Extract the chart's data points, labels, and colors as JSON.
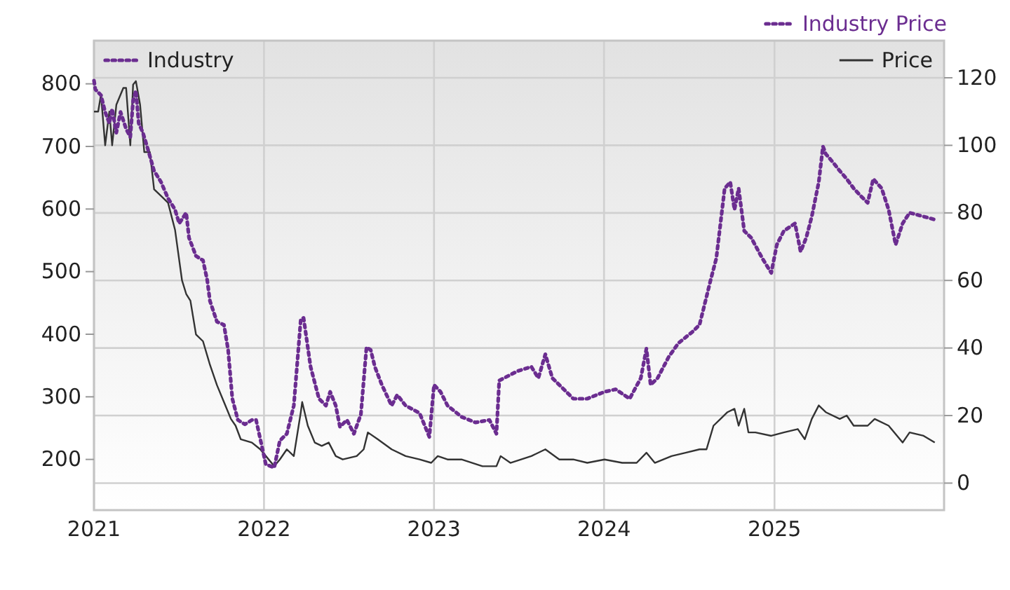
{
  "chart_data": {
    "type": "line",
    "legend_title": "Industry Price",
    "legend": "top",
    "grid": true,
    "xlim": [
      "2021-01-01",
      "2025-12-31"
    ],
    "xticks": [
      {
        "value": "2021-01-01",
        "label": "2021"
      },
      {
        "value": "2022-01-01",
        "label": "2022"
      },
      {
        "value": "2023-01-01",
        "label": "2023"
      },
      {
        "value": "2024-01-01",
        "label": "2024"
      },
      {
        "value": "2025-01-01",
        "label": "2025"
      }
    ],
    "ylim": [
      119,
      869
    ],
    "yticks": [
      200,
      300,
      400,
      500,
      600,
      700,
      800
    ],
    "y2lim": [
      -8,
      131
    ],
    "y2ticks": [
      0,
      20,
      40,
      60,
      80,
      100,
      120
    ],
    "series": [
      {
        "name": "Industry",
        "color": "#6b2d90",
        "line_style": "dotted",
        "x": [
          "2021-01-01",
          "2021-01-04",
          "2021-01-16",
          "2021-01-25",
          "2021-02-03",
          "2021-02-09",
          "2021-02-18",
          "2021-02-27",
          "2021-03-11",
          "2021-03-20",
          "2021-03-26",
          "2021-04-01",
          "2021-04-07",
          "2021-04-16",
          "2021-04-25",
          "2021-05-10",
          "2021-05-25",
          "2021-06-09",
          "2021-06-24",
          "2021-07-03",
          "2021-07-18",
          "2021-07-24",
          "2021-08-08",
          "2021-08-23",
          "2021-09-01",
          "2021-09-07",
          "2021-09-22",
          "2021-10-07",
          "2021-10-16",
          "2021-10-25",
          "2021-11-06",
          "2021-11-21",
          "2021-12-06",
          "2021-12-15",
          "2022-01-05",
          "2022-01-23",
          "2022-02-04",
          "2022-02-19",
          "2022-03-06",
          "2022-03-21",
          "2022-03-27",
          "2022-04-11",
          "2022-04-29",
          "2022-05-14",
          "2022-05-23",
          "2022-06-04",
          "2022-06-13",
          "2022-06-28",
          "2022-07-13",
          "2022-07-28",
          "2022-08-09",
          "2022-08-18",
          "2022-08-27",
          "2022-09-11",
          "2022-10-02",
          "2022-10-14",
          "2022-11-01",
          "2022-12-01",
          "2022-12-22",
          "2023-01-01",
          "2023-01-15",
          "2023-01-30",
          "2023-03-01",
          "2023-03-31",
          "2023-04-30",
          "2023-05-15",
          "2023-05-21",
          "2023-06-29",
          "2023-07-29",
          "2023-08-13",
          "2023-08-28",
          "2023-09-12",
          "2023-09-27",
          "2023-10-27",
          "2023-11-26",
          "2024-01-02",
          "2024-01-26",
          "2024-02-25",
          "2024-03-20",
          "2024-04-01",
          "2024-04-10",
          "2024-04-25",
          "2024-05-19",
          "2024-06-09",
          "2024-07-09",
          "2024-07-24",
          "2024-08-17",
          "2024-08-29",
          "2024-09-16",
          "2024-09-28",
          "2024-10-07",
          "2024-10-16",
          "2024-10-28",
          "2024-11-12",
          "2024-12-06",
          "2024-12-25",
          "2025-01-06",
          "2025-01-21",
          "2025-02-14",
          "2025-02-26",
          "2025-03-10",
          "2025-03-22",
          "2025-04-06",
          "2025-04-15",
          "2025-04-21",
          "2025-05-06",
          "2025-05-21",
          "2025-06-05",
          "2025-06-20",
          "2025-07-05",
          "2025-07-20",
          "2025-08-01",
          "2025-08-19",
          "2025-09-03",
          "2025-09-18",
          "2025-10-03",
          "2025-10-18",
          "2025-11-17",
          "2025-12-11"
        ],
        "values": [
          805,
          791,
          782,
          755,
          737,
          760,
          722,
          755,
          728,
          715,
          773,
          789,
          737,
          722,
          700,
          661,
          643,
          617,
          599,
          577,
          594,
          554,
          525,
          518,
          487,
          453,
          420,
          415,
          375,
          297,
          263,
          256,
          263,
          263,
          192,
          187,
          230,
          241,
          286,
          424,
          426,
          348,
          297,
          286,
          308,
          286,
          252,
          263,
          241,
          272,
          379,
          375,
          348,
          319,
          286,
          303,
          286,
          274,
          236,
          319,
          308,
          286,
          268,
          259,
          263,
          241,
          326,
          341,
          348,
          330,
          368,
          330,
          319,
          297,
          297,
          308,
          312,
          297,
          330,
          377,
          319,
          330,
          364,
          386,
          404,
          415,
          487,
          521,
          633,
          643,
          599,
          633,
          565,
          554,
          521,
          498,
          543,
          565,
          577,
          532,
          554,
          588,
          643,
          700,
          688,
          675,
          661,
          648,
          633,
          621,
          610,
          648,
          633,
          599,
          543,
          577,
          594,
          588,
          583
        ]
      },
      {
        "name": "Price",
        "color": "#333333",
        "line_style": "solid",
        "axis": "y2",
        "x": [
          "2021-01-01",
          "2021-01-10",
          "2021-01-16",
          "2021-01-25",
          "2021-02-03",
          "2021-02-09",
          "2021-02-18",
          "2021-03-05",
          "2021-03-11",
          "2021-03-20",
          "2021-03-26",
          "2021-04-01",
          "2021-04-10",
          "2021-04-19",
          "2021-05-01",
          "2021-05-10",
          "2021-05-25",
          "2021-06-09",
          "2021-06-24",
          "2021-07-09",
          "2021-07-18",
          "2021-07-27",
          "2021-08-08",
          "2021-08-23",
          "2021-09-07",
          "2021-09-22",
          "2021-10-07",
          "2021-10-22",
          "2021-11-01",
          "2021-11-12",
          "2021-12-06",
          "2021-12-24",
          "2022-01-05",
          "2022-01-23",
          "2022-02-04",
          "2022-02-19",
          "2022-03-06",
          "2022-03-21",
          "2022-03-24",
          "2022-04-05",
          "2022-04-20",
          "2022-05-05",
          "2022-05-20",
          "2022-06-04",
          "2022-06-19",
          "2022-07-19",
          "2022-08-03",
          "2022-08-12",
          "2022-09-02",
          "2022-10-02",
          "2022-11-01",
          "2022-12-01",
          "2022-12-26",
          "2023-01-09",
          "2023-01-30",
          "2023-03-01",
          "2023-04-15",
          "2023-05-15",
          "2023-05-24",
          "2023-06-14",
          "2023-07-29",
          "2023-08-28",
          "2023-09-27",
          "2023-10-27",
          "2023-11-26",
          "2024-01-02",
          "2024-02-09",
          "2024-03-11",
          "2024-04-01",
          "2024-04-19",
          "2024-05-25",
          "2024-06-24",
          "2024-07-24",
          "2024-08-08",
          "2024-08-23",
          "2024-09-07",
          "2024-09-22",
          "2024-10-07",
          "2024-10-16",
          "2024-10-28",
          "2024-11-06",
          "2024-11-21",
          "2024-12-25",
          "2025-01-21",
          "2025-02-20",
          "2025-03-07",
          "2025-03-22",
          "2025-04-06",
          "2025-04-21",
          "2025-05-21",
          "2025-06-05",
          "2025-06-20",
          "2025-07-20",
          "2025-08-04",
          "2025-09-03",
          "2025-10-03",
          "2025-10-18",
          "2025-11-17",
          "2025-12-11"
        ],
        "values": [
          110,
          110,
          115,
          100,
          110,
          100,
          112,
          117,
          117,
          100,
          118,
          119,
          112,
          98,
          98,
          87,
          85,
          83,
          75,
          60,
          56,
          54,
          44,
          42,
          35,
          29,
          24,
          19,
          17,
          13,
          12,
          10,
          8,
          5,
          7,
          10,
          8,
          21,
          24,
          17,
          12,
          11,
          12,
          8,
          7,
          8,
          10,
          15,
          13,
          10,
          8,
          7,
          6,
          8,
          7,
          7,
          5,
          5,
          8,
          6,
          8,
          10,
          7,
          7,
          6,
          7,
          6,
          6,
          9,
          6,
          8,
          9,
          10,
          10,
          17,
          19,
          21,
          22,
          17,
          22,
          15,
          15,
          14,
          15,
          16,
          13,
          19,
          23,
          21,
          19,
          20,
          17,
          17,
          19,
          17,
          12,
          15,
          14,
          12
        ]
      }
    ]
  }
}
